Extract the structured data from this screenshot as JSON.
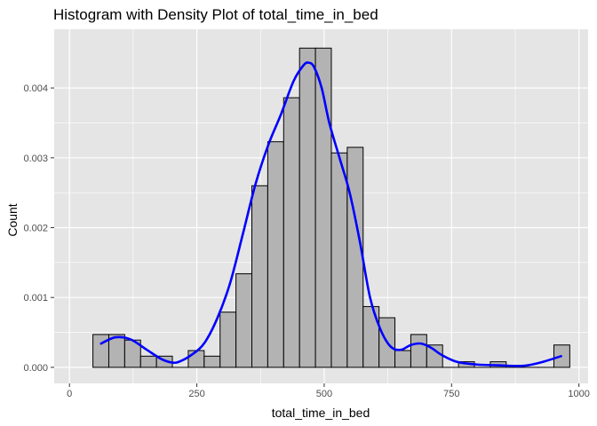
{
  "chart_data": {
    "type": "bar",
    "title": "Histogram with Density Plot of total_time_in_bed",
    "xlabel": "total_time_in_bed",
    "ylabel": "Count",
    "xlim": [
      0,
      1000
    ],
    "ylim": [
      0,
      0.0046
    ],
    "grid": true,
    "x_ticks": [
      {
        "value": 0,
        "label": "0"
      },
      {
        "value": 250,
        "label": "250"
      },
      {
        "value": 500,
        "label": "500"
      },
      {
        "value": 750,
        "label": "750"
      },
      {
        "value": 1000,
        "label": "1000"
      }
    ],
    "y_ticks": [
      {
        "value": 0,
        "label": "0.000"
      },
      {
        "value": 0.001,
        "label": "0.001"
      },
      {
        "value": 0.002,
        "label": "0.002"
      },
      {
        "value": 0.003,
        "label": "0.003"
      },
      {
        "value": 0.004,
        "label": "0.004"
      }
    ],
    "bin_width": 31.2,
    "bins_start": [
      46,
      77.2,
      108.4,
      139.6,
      170.8,
      202,
      233.2,
      264.4,
      295.6,
      326.8,
      358,
      389.2,
      420.4,
      451.6,
      482.8,
      514,
      545.2,
      576.4,
      607.6,
      638.8,
      670,
      701.2,
      732.4,
      763.6,
      794.8,
      826,
      857.2,
      888.4,
      919.6,
      950.8
    ],
    "values": [
      0.00047,
      0.00047,
      0.00039,
      0.00016,
      0.00016,
      0.0,
      0.00024,
      0.00016,
      0.00079,
      0.00134,
      0.0026,
      0.00323,
      0.00386,
      0.00457,
      0.00457,
      0.00307,
      0.00315,
      0.00087,
      0.00071,
      0.00024,
      0.00047,
      0.00032,
      0.0,
      8e-05,
      0.0,
      8e-05,
      0.0,
      0.0,
      0.0,
      0.00032
    ],
    "density": {
      "color": "#0000ff",
      "x": [
        62,
        90,
        120,
        150,
        180,
        200,
        215,
        240,
        265,
        290,
        315,
        340,
        365,
        390,
        415,
        440,
        460,
        470,
        480,
        495,
        510,
        530,
        550,
        570,
        590,
        610,
        630,
        650,
        670,
        690,
        710,
        730,
        760,
        800,
        840,
        880,
        900,
        930,
        965
      ],
      "y": [
        0.00034,
        0.00043,
        0.0004,
        0.00026,
        0.00012,
        7e-05,
        8e-05,
        0.00018,
        0.00035,
        0.0007,
        0.0012,
        0.0019,
        0.00262,
        0.00318,
        0.00362,
        0.0041,
        0.00433,
        0.00436,
        0.0043,
        0.004,
        0.0035,
        0.003,
        0.0025,
        0.0018,
        0.001,
        0.00055,
        0.0003,
        0.00025,
        0.00032,
        0.00034,
        0.00028,
        0.00018,
        8e-05,
        4e-05,
        3e-05,
        2e-05,
        3e-05,
        8e-05,
        0.00016
      ]
    },
    "bar_fill": "#b3b3b3",
    "bar_stroke": "#000000",
    "panel_bg": "#e5e5e5",
    "grid_color": "#ffffff"
  }
}
